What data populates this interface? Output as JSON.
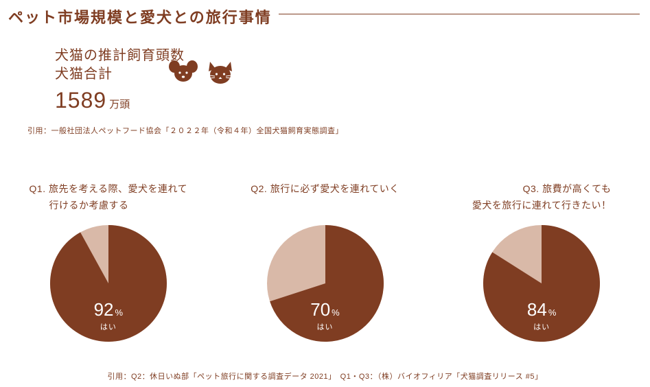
{
  "title": "ペット市場規模と愛犬との旅行事情",
  "stat": {
    "line1": "犬猫の推計飼育頭数",
    "line2": "犬猫合計",
    "number": "1589",
    "unit": "万頭"
  },
  "cite1": "引用：一般社団法人ペットフード協会「２０２２年（令和４年）全国犬猫飼育実態調査」",
  "icons": {
    "dog": "dog-icon",
    "cat": "cat-icon"
  },
  "colors": {
    "primary": "#7f3d22",
    "pie_remainder": "#d9b9a8",
    "bg": "#ffffff",
    "text_on_pie": "#ffffff"
  },
  "questions": [
    {
      "id": "q1",
      "title": "Q1. 旅先を考える際、愛犬を連れて\n　　行けるか考慮する",
      "percent": 92,
      "percent_label": "92",
      "answer_label": "はい"
    },
    {
      "id": "q2",
      "title": "Q2. 旅行に必ず愛犬を連れていく",
      "percent": 70,
      "percent_label": "70",
      "answer_label": "はい"
    },
    {
      "id": "q3",
      "title": "Q3. 旅費が高くても\n愛犬を旅行に連れて行きたい！",
      "percent": 84,
      "percent_label": "84",
      "answer_label": "はい"
    }
  ],
  "pie_style": {
    "diameter": 170,
    "fill_color": "#7f3d22",
    "rest_color": "#d9b9a8",
    "pct_fontsize": 26,
    "pct_unit_fontsize": 13,
    "answer_fontsize": 11
  },
  "cite2": "引用：Q2：休日いぬ部「ペット旅行に関する調査データ 2021」　Q1・Q3：（株）バイオフィリア「犬猫調査リリース #5」",
  "pct_unit": "%"
}
